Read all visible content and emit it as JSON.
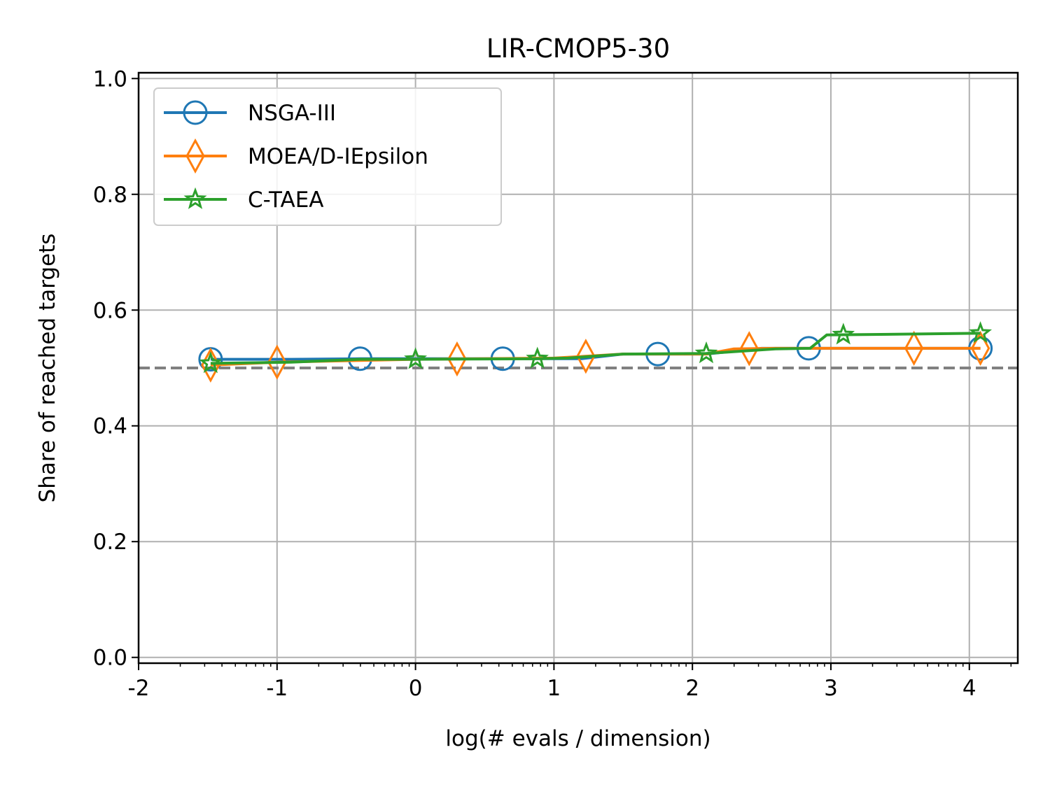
{
  "chart_data": {
    "type": "line",
    "title": "LIR-CMOP5-30",
    "xlabel": "log(# evals / dimension)",
    "ylabel": "Share of reached targets",
    "xlim": [
      -2,
      4.35
    ],
    "ylim": [
      -0.01,
      1.01
    ],
    "x_ticks": [
      "-2",
      "-1",
      "0",
      "1",
      "2",
      "3",
      "4"
    ],
    "y_ticks": [
      "0.0",
      "0.2",
      "0.4",
      "0.6",
      "0.8",
      "1.0"
    ],
    "grid": true,
    "legend_position": "top-left",
    "reference_line": {
      "y": 0.5,
      "style": "dashed",
      "color": "#808080"
    },
    "series": [
      {
        "name": "NSGA-III",
        "color": "#1f77b4",
        "marker": "circle",
        "x": [
          -1.48,
          -0.9,
          -0.4,
          0.3,
          1.2,
          1.5,
          2.1,
          2.5,
          2.84,
          3.0,
          4.08
        ],
        "y": [
          0.515,
          0.515,
          0.516,
          0.516,
          0.516,
          0.524,
          0.524,
          0.534,
          0.534,
          0.534,
          0.534
        ],
        "marker_x": [
          -1.48,
          -0.4,
          0.63,
          1.75,
          2.84,
          4.08
        ]
      },
      {
        "name": "MOEA/D-IEpsilon",
        "color": "#ff7f0e",
        "marker": "diamond",
        "x": [
          -1.48,
          -1.0,
          0.0,
          1.0,
          1.5,
          2.1,
          2.3,
          2.6,
          3.0,
          4.08
        ],
        "y": [
          0.505,
          0.51,
          0.515,
          0.517,
          0.524,
          0.524,
          0.533,
          0.534,
          0.534,
          0.534
        ],
        "marker_x": [
          -1.48,
          -1.0,
          0.3,
          1.23,
          2.41,
          3.6,
          4.08
        ]
      },
      {
        "name": "C-TAEA",
        "color": "#2ca02c",
        "marker": "star",
        "x": [
          -1.48,
          -0.9,
          -0.4,
          0.0,
          0.88,
          1.1,
          1.5,
          2.1,
          2.6,
          2.85,
          2.97,
          4.08
        ],
        "y": [
          0.508,
          0.51,
          0.515,
          0.515,
          0.516,
          0.517,
          0.524,
          0.525,
          0.533,
          0.534,
          0.557,
          0.56
        ],
        "marker_x": [
          -1.48,
          0.0,
          0.88,
          2.1,
          3.09,
          4.08
        ]
      }
    ]
  }
}
